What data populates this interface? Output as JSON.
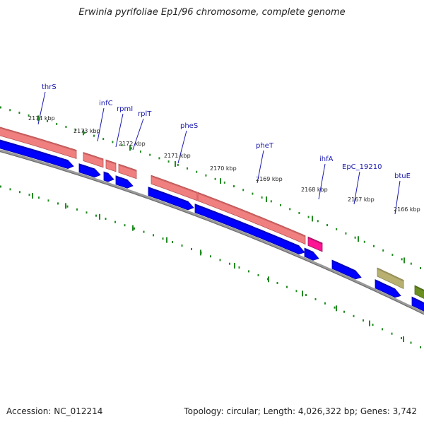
{
  "title": "Erwinia pyrifoliae Ep1/96 chromosome, complete genome",
  "footer": {
    "accession": "Accession: NC_012214",
    "topology": "Topology: circular; Length: 4,026,322 bp; Genes: 3,742"
  },
  "colors": {
    "forward_cds": "#f08080",
    "forward_cds_dark": "#b85050",
    "trna": "#ff1493",
    "pseudo": "#b8b070",
    "other_feature": "#6b8e23",
    "reverse_cds": "#0000ff",
    "reverse_cds_dark": "#0000a8",
    "backbone": "#808080",
    "tick": "#228b22",
    "gene_label": "#1a1ab0"
  },
  "kbp_labels": [
    "2174 kbp",
    "2173 kbp",
    "2172 kbp",
    "2171 kbp",
    "2170 kbp",
    "2169 kbp",
    "2168 kbp",
    "2167 kbp",
    "2166 kbp"
  ],
  "gene_labels": [
    "thrS",
    "infC",
    "rpmI",
    "rplT",
    "pheS",
    "pheT",
    "ihfA",
    "EpC_19210",
    "btuE"
  ]
}
